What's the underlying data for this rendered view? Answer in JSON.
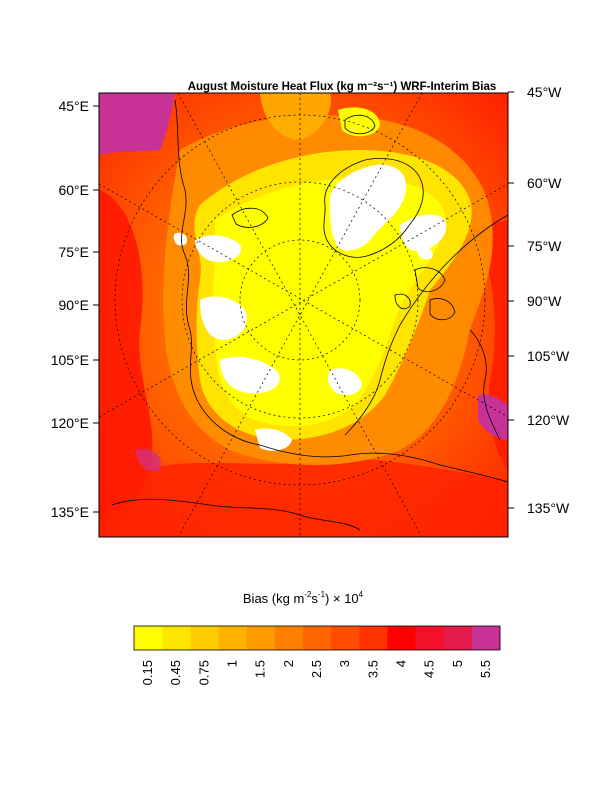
{
  "chart_data": {
    "type": "heatmap",
    "title": "August Moisture Heat Flux (kg m⁻²s⁻¹) WRF-Interim Bias",
    "left_tick_labels": [
      "45°E",
      "60°E",
      "75°E",
      "90°E",
      "105°E",
      "120°E",
      "135°E"
    ],
    "right_tick_labels": [
      "45°W",
      "60°W",
      "75°W",
      "90°W",
      "105°W",
      "120°W",
      "135°W"
    ],
    "colorbar": {
      "title_main": "Bias (kg m",
      "title_sup1": "-2",
      "title_mid": "s",
      "title_sup2": "-1",
      "title_end": ") × 10",
      "title_sup3": "4",
      "levels": [
        "0.15",
        "0.45",
        "0.75",
        "1",
        "1.5",
        "2",
        "2.5",
        "3",
        "3.5",
        "4",
        "4.5",
        "5",
        "5.5"
      ],
      "colors": [
        "#ffff00",
        "#ffe600",
        "#ffcc00",
        "#ffb300",
        "#ff9a00",
        "#ff8000",
        "#ff6600",
        "#ff4d00",
        "#ff3300",
        "#ff0000",
        "#f2102a",
        "#e6194b",
        "#c83296"
      ]
    },
    "missing_color": "#ffffff",
    "grid": "dotted polar graticule"
  }
}
